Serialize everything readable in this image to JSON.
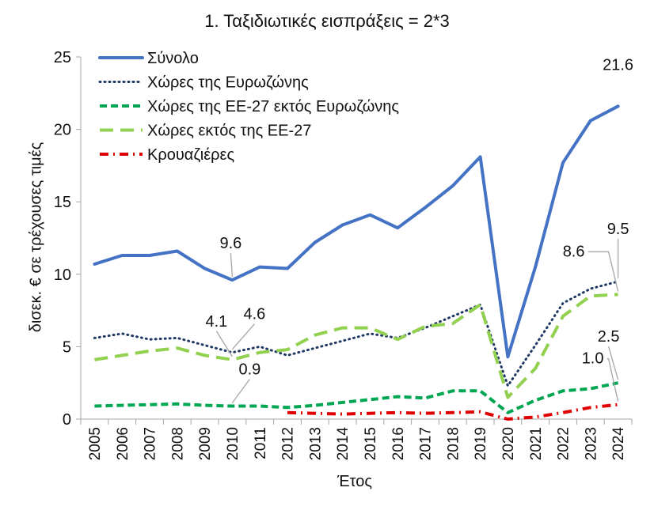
{
  "chart_data": {
    "type": "line",
    "title": "1. Ταξιδιωτικές εισπράξεις = 2*3",
    "xlabel": "Έτος",
    "ylabel": "δισεκ. € σε τρέχουσες τιμές",
    "ylim": [
      0,
      25
    ],
    "yticks": [
      "0",
      "5",
      "10",
      "15",
      "20",
      "25"
    ],
    "categories": [
      "2005",
      "2006",
      "2007",
      "2008",
      "2009",
      "2010",
      "2011",
      "2012",
      "2013",
      "2014",
      "2015",
      "2016",
      "2017",
      "2018",
      "2019",
      "2020",
      "2021",
      "2022",
      "2023",
      "2024"
    ],
    "series": [
      {
        "name": "Σύνολο",
        "color": "#4472C4",
        "style": "solid",
        "values": [
          10.7,
          11.3,
          11.3,
          11.6,
          10.4,
          9.6,
          10.5,
          10.4,
          12.2,
          13.4,
          14.1,
          13.2,
          14.6,
          16.1,
          18.1,
          4.3,
          10.5,
          17.7,
          20.6,
          21.6
        ]
      },
      {
        "name": "Χώρες της Ευρωζώνης",
        "color": "#1F3864",
        "style": "dotted",
        "values": [
          5.6,
          5.9,
          5.5,
          5.6,
          5.1,
          4.6,
          5.0,
          4.4,
          4.9,
          5.4,
          5.9,
          5.6,
          6.3,
          7.1,
          7.9,
          2.3,
          5.1,
          8.0,
          9.0,
          9.5
        ]
      },
      {
        "name": "Χώρες της ΕΕ-27 εκτός Ευρωζώνης",
        "color": "#00A651",
        "style": "dashed",
        "values": [
          0.9,
          0.95,
          1.0,
          1.05,
          0.95,
          0.9,
          0.9,
          0.8,
          0.95,
          1.15,
          1.35,
          1.55,
          1.45,
          1.95,
          1.95,
          0.45,
          1.3,
          1.95,
          2.1,
          2.5
        ]
      },
      {
        "name": "Χώρες εκτός της ΕΕ-27",
        "color": "#92D050",
        "style": "longdash",
        "values": [
          4.1,
          4.4,
          4.7,
          4.9,
          4.4,
          4.1,
          4.6,
          4.8,
          5.8,
          6.3,
          6.3,
          5.5,
          6.4,
          6.6,
          7.9,
          1.5,
          3.5,
          7.1,
          8.5,
          8.6
        ]
      },
      {
        "name": "Κρουαζιέρες",
        "color": "#E00000",
        "style": "dashdot",
        "values": [
          null,
          null,
          null,
          null,
          null,
          null,
          null,
          0.45,
          0.4,
          0.35,
          0.4,
          0.45,
          0.4,
          0.45,
          0.5,
          0.0,
          0.15,
          0.45,
          0.8,
          1.0
        ]
      }
    ],
    "annotations": [
      {
        "text": "21.6",
        "series": 0,
        "index": 19
      },
      {
        "text": "9.6",
        "series": 0,
        "index": 5
      },
      {
        "text": "9.5",
        "series": 1,
        "index": 19
      },
      {
        "text": "8.6",
        "series": 3,
        "index": 19
      },
      {
        "text": "4.1",
        "series": 3,
        "index": 5
      },
      {
        "text": "4.6",
        "series": 1,
        "index": 5
      },
      {
        "text": "0.9",
        "series": 2,
        "index": 5
      },
      {
        "text": "2.5",
        "series": 2,
        "index": 19
      },
      {
        "text": "1.0",
        "series": 4,
        "index": 19
      }
    ],
    "legend_position": "top-left",
    "grid": false
  }
}
